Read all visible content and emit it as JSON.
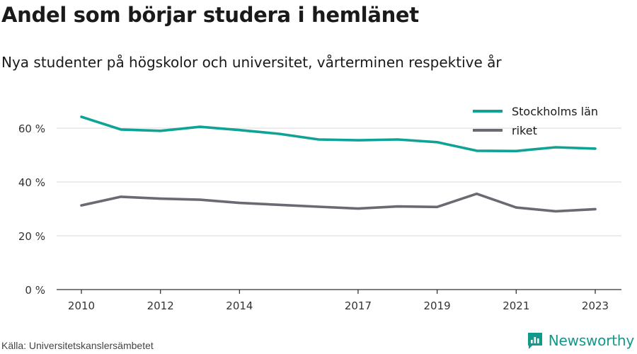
{
  "header": {
    "title": "Andel som börjar studera i hemlänet",
    "subtitle": "Nya studenter på högskolor och universitet, vårterminen respektive år"
  },
  "footer": {
    "source": "Källa: Universitetskanslersämbetet",
    "brand": "Newsworthy"
  },
  "colors": {
    "stockholm": "#0fa396",
    "riket": "#6b6a72",
    "grid": "#d9d9d9",
    "axis": "#333333",
    "brand": "#0f9a8c"
  },
  "chart_data": {
    "type": "line",
    "title": "Andel som börjar studera i hemlänet",
    "subtitle": "Nya studenter på högskolor och universitet, vårterminen respektive år",
    "x": [
      2010,
      2011,
      2012,
      2013,
      2014,
      2015,
      2016,
      2017,
      2018,
      2019,
      2020,
      2021,
      2022,
      2023
    ],
    "x_ticks": [
      2010,
      2012,
      2014,
      2017,
      2019,
      2021,
      2023
    ],
    "y_ticks": [
      0,
      20,
      40,
      60
    ],
    "y_tick_labels": [
      "0 %",
      "20 %",
      "40 %",
      "60 %"
    ],
    "ylim": [
      0,
      70
    ],
    "grid": "horizontal",
    "legend_position": "top-right",
    "series": [
      {
        "name": "Stockholms län",
        "color": "#0fa396",
        "values": [
          64.2,
          59.5,
          59.0,
          60.5,
          59.3,
          57.9,
          55.8,
          55.5,
          55.8,
          54.8,
          51.6,
          51.5,
          52.9,
          52.4
        ]
      },
      {
        "name": "riket",
        "color": "#6b6a72",
        "values": [
          31.3,
          34.5,
          33.8,
          33.4,
          32.2,
          31.5,
          30.8,
          30.1,
          30.9,
          30.7,
          35.6,
          30.5,
          29.1,
          29.9
        ]
      }
    ]
  }
}
